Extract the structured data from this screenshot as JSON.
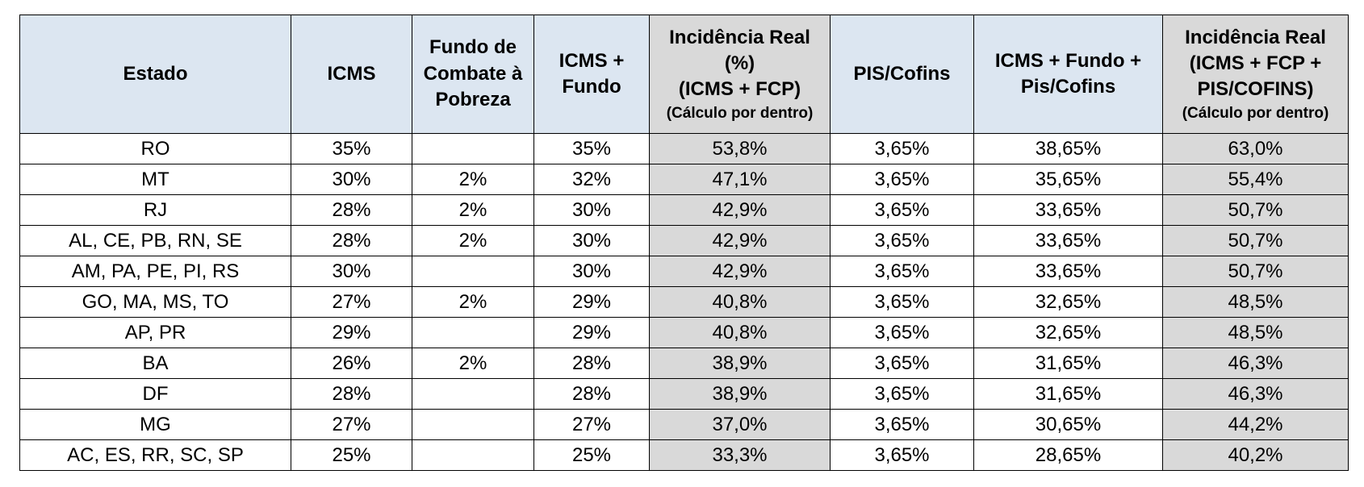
{
  "headers": {
    "estado": "Estado",
    "icms": "ICMS",
    "fundo": [
      "Fundo de",
      "Combate à",
      "Pobreza"
    ],
    "icms_fundo": [
      "ICMS +",
      "Fundo"
    ],
    "incidencia1": [
      "Incidência Real",
      "(%)",
      "(ICMS + FCP)"
    ],
    "incidencia1_note": "(Cálculo por dentro)",
    "piscofins": "PIS/Cofins",
    "icms_fundo_pis": [
      "ICMS + Fundo +",
      "Pis/Cofins"
    ],
    "incidencia2": [
      "Incidência Real",
      "(ICMS + FCP +",
      "PIS/COFINS)"
    ],
    "incidencia2_note": "(Cálculo por dentro)"
  },
  "rows": [
    [
      "RO",
      "35%",
      "",
      "35%",
      "53,8%",
      "3,65%",
      "38,65%",
      "63,0%"
    ],
    [
      "MT",
      "30%",
      "2%",
      "32%",
      "47,1%",
      "3,65%",
      "35,65%",
      "55,4%"
    ],
    [
      "RJ",
      "28%",
      "2%",
      "30%",
      "42,9%",
      "3,65%",
      "33,65%",
      "50,7%"
    ],
    [
      "AL, CE, PB, RN, SE",
      "28%",
      "2%",
      "30%",
      "42,9%",
      "3,65%",
      "33,65%",
      "50,7%"
    ],
    [
      "AM, PA, PE, PI, RS",
      "30%",
      "",
      "30%",
      "42,9%",
      "3,65%",
      "33,65%",
      "50,7%"
    ],
    [
      "GO, MA, MS, TO",
      "27%",
      "2%",
      "29%",
      "40,8%",
      "3,65%",
      "32,65%",
      "48,5%"
    ],
    [
      "AP, PR",
      "29%",
      "",
      "29%",
      "40,8%",
      "3,65%",
      "32,65%",
      "48,5%"
    ],
    [
      "BA",
      "26%",
      "2%",
      "28%",
      "38,9%",
      "3,65%",
      "31,65%",
      "46,3%"
    ],
    [
      "DF",
      "28%",
      "",
      "28%",
      "38,9%",
      "3,65%",
      "31,65%",
      "46,3%"
    ],
    [
      "MG",
      "27%",
      "",
      "27%",
      "37,0%",
      "3,65%",
      "30,65%",
      "44,2%"
    ],
    [
      "AC, ES, RR, SC, SP",
      "25%",
      "",
      "25%",
      "33,3%",
      "3,65%",
      "28,65%",
      "40,2%"
    ]
  ]
}
